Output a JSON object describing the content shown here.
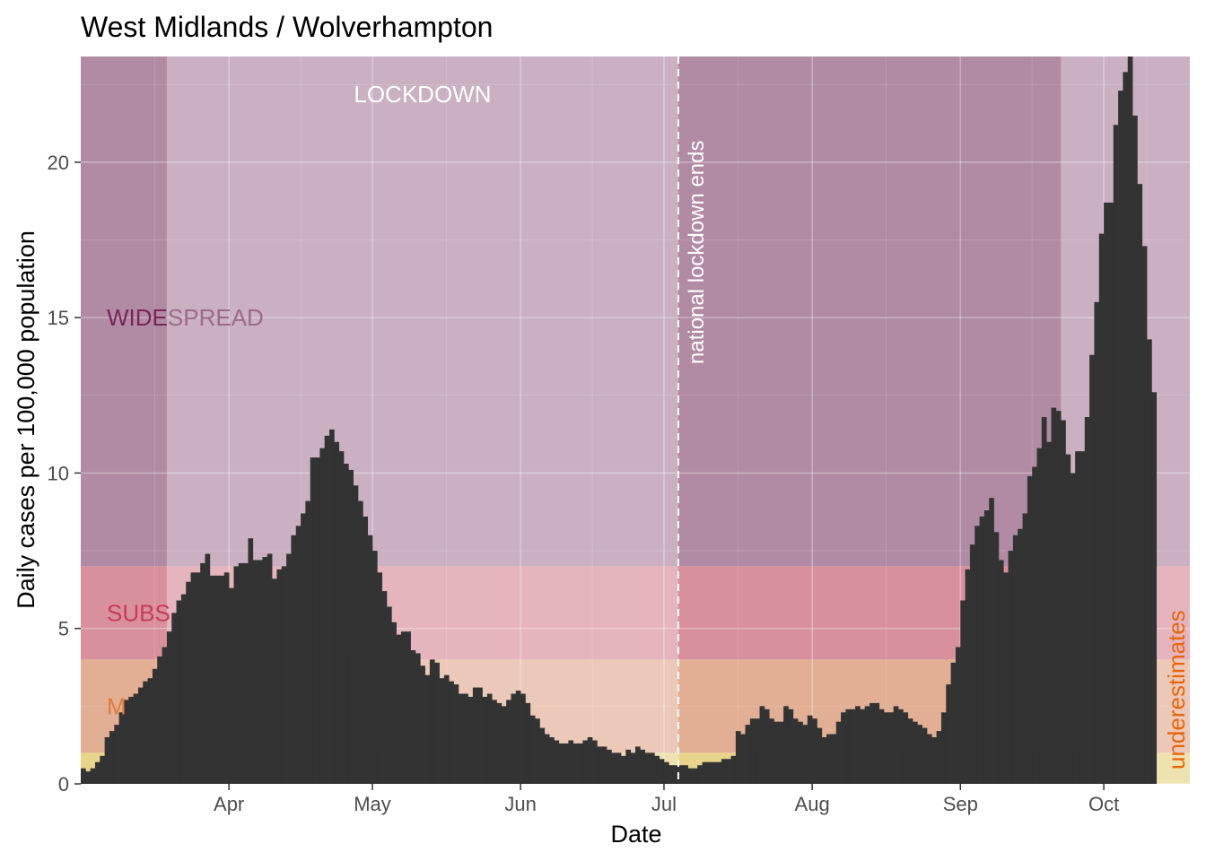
{
  "chart_data": {
    "type": "bar",
    "title": "West Midlands / Wolverhampton",
    "xlabel": "Date",
    "ylabel": "Daily cases per 100,000 population",
    "x_start": "2020-03-01",
    "x_end": "2020-10-19",
    "ylim": [
      0,
      23.4
    ],
    "y_ticks": [
      0,
      5,
      10,
      15,
      20
    ],
    "y_tick_labels": [
      "0",
      "5",
      "10",
      "15",
      "20"
    ],
    "x_ticks": [
      {
        "date": "2020-04-01",
        "label": "Apr"
      },
      {
        "date": "2020-05-01",
        "label": "May"
      },
      {
        "date": "2020-06-01",
        "label": "Jun"
      },
      {
        "date": "2020-07-01",
        "label": "Jul"
      },
      {
        "date": "2020-08-01",
        "label": "Aug"
      },
      {
        "date": "2020-09-01",
        "label": "Sep"
      },
      {
        "date": "2020-10-01",
        "label": "Oct"
      }
    ],
    "grid": true,
    "bands": [
      {
        "label": "",
        "from": 0,
        "to": 1,
        "color": "#e8d48b"
      },
      {
        "label": "M",
        "from": 1,
        "to": 4,
        "color": "#e2ae94",
        "label_color": "#e07a3f"
      },
      {
        "label": "SUBS",
        "from": 4,
        "to": 7,
        "color": "#d8909c",
        "label_color": "#c93a5a"
      },
      {
        "label": "WIDE",
        "label_rest": "SPREAD",
        "from": 7,
        "to": 23.4,
        "color": "#b18aa3",
        "label_color": "#7a2458",
        "label_rest_color": "#9c6a88"
      }
    ],
    "lockdown_periods": [
      {
        "from": "2020-03-19",
        "to": "2020-07-04"
      },
      {
        "from": "2020-09-22",
        "to": "2020-10-19"
      }
    ],
    "annotations": {
      "lockdown_label": "LOCKDOWN",
      "lockdown_ends_date": "2020-07-04",
      "lockdown_ends_label": "national lockdown ends",
      "underestimates_label": "underestimates",
      "underestimates_color": "#e8650c"
    },
    "values": [
      0.5,
      0.4,
      0.5,
      0.7,
      0.9,
      1.5,
      1.7,
      1.9,
      2.3,
      2.7,
      2.8,
      2.9,
      3.1,
      3.3,
      3.4,
      3.7,
      4.1,
      4.4,
      4.9,
      5.5,
      5.9,
      6.1,
      6.5,
      6.8,
      6.8,
      7.1,
      7.4,
      6.7,
      6.7,
      6.7,
      6.8,
      6.3,
      7.0,
      7.1,
      7.1,
      7.9,
      7.2,
      7.2,
      7.3,
      7.4,
      6.6,
      6.9,
      7.0,
      7.4,
      8.0,
      8.3,
      8.7,
      9.1,
      10.5,
      10.5,
      10.8,
      11.2,
      11.4,
      11.0,
      10.7,
      10.3,
      10.1,
      9.6,
      9.1,
      8.6,
      8.0,
      7.5,
      6.8,
      6.2,
      5.7,
      5.2,
      4.8,
      4.9,
      4.9,
      4.3,
      4.2,
      3.8,
      3.5,
      4.0,
      3.9,
      3.4,
      3.5,
      3.3,
      3.2,
      2.9,
      2.9,
      2.8,
      3.1,
      3.1,
      2.8,
      2.9,
      2.7,
      2.6,
      2.5,
      2.7,
      2.9,
      3.0,
      2.9,
      2.6,
      2.2,
      2.1,
      1.8,
      1.6,
      1.5,
      1.4,
      1.3,
      1.3,
      1.4,
      1.3,
      1.3,
      1.4,
      1.5,
      1.4,
      1.2,
      1.2,
      1.1,
      1.0,
      1.0,
      0.9,
      1.1,
      1.0,
      1.2,
      1.1,
      1.0,
      1.0,
      0.9,
      0.8,
      0.7,
      0.6,
      0.6,
      0.6,
      0.6,
      0.5,
      0.5,
      0.6,
      0.7,
      0.7,
      0.7,
      0.7,
      0.8,
      0.8,
      0.9,
      1.7,
      1.6,
      1.9,
      2.1,
      2.1,
      2.5,
      2.4,
      2.1,
      2.0,
      2.0,
      2.5,
      2.4,
      2.1,
      2.0,
      1.9,
      2.2,
      2.1,
      1.8,
      1.5,
      1.6,
      1.6,
      2.0,
      2.3,
      2.4,
      2.4,
      2.5,
      2.4,
      2.5,
      2.6,
      2.6,
      2.4,
      2.3,
      2.3,
      2.5,
      2.4,
      2.3,
      2.1,
      2.0,
      1.9,
      1.8,
      1.6,
      1.5,
      1.7,
      2.3,
      3.2,
      3.9,
      4.4,
      5.9,
      6.9,
      7.7,
      8.3,
      8.6,
      8.8,
      9.2,
      8.1,
      7.2,
      6.8,
      7.5,
      8.0,
      8.2,
      8.7,
      9.9,
      10.2,
      10.8,
      11.8,
      11.0,
      12.1,
      12.0,
      11.7,
      10.6,
      10.0,
      10.7,
      10.7,
      11.8,
      13.8,
      15.5,
      17.7,
      18.7,
      18.7,
      21.2,
      22.3,
      22.9,
      23.5,
      21.5,
      19.3,
      17.3,
      14.3,
      12.6
    ]
  }
}
